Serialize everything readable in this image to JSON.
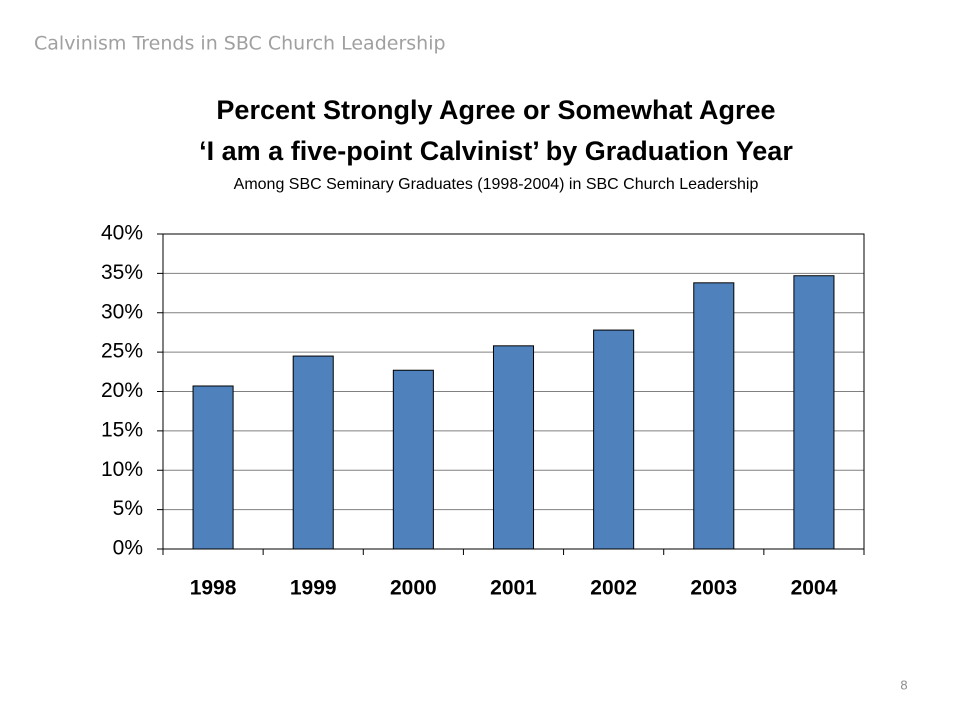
{
  "slide_header": "Calvinism Trends in SBC Church Leadership",
  "page_number": "8",
  "chart_data": {
    "type": "bar",
    "title": [
      "Percent Strongly Agree or Somewhat Agree",
      "‘I am a five-point Calvinist’ by Graduation Year"
    ],
    "subtitle": "Among SBC Seminary Graduates (1998-2004) in SBC Church Leadership",
    "categories": [
      "1998",
      "1999",
      "2000",
      "2001",
      "2002",
      "2003",
      "2004"
    ],
    "values": [
      20.7,
      24.5,
      22.7,
      25.8,
      27.8,
      33.8,
      34.7
    ],
    "color": "#4f81bd",
    "ylim": [
      0,
      40
    ],
    "yticks": [
      {
        "value": 0,
        "label": "0%"
      },
      {
        "value": 5,
        "label": "5%"
      },
      {
        "value": 10,
        "label": "10%"
      },
      {
        "value": 15,
        "label": "15%"
      },
      {
        "value": 20,
        "label": "20%"
      },
      {
        "value": 25,
        "label": "25%"
      },
      {
        "value": 30,
        "label": "30%"
      },
      {
        "value": 35,
        "label": "35%"
      },
      {
        "value": 40,
        "label": "40%"
      }
    ],
    "grid": true
  }
}
